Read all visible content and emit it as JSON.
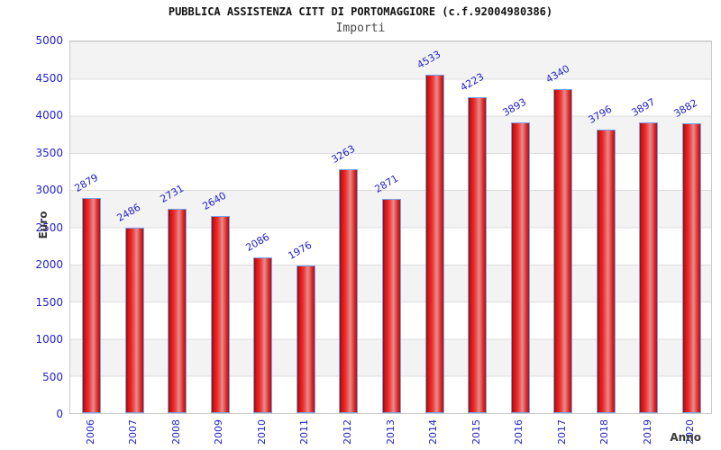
{
  "chart_data": {
    "type": "bar",
    "title": "PUBBLICA ASSISTENZA CITT DI PORTOMAGGIORE (c.f.92004980386)",
    "subtitle": "Importi",
    "xlabel": "Anno",
    "ylabel": "Euro",
    "categories": [
      "2006",
      "2007",
      "2008",
      "2009",
      "2010",
      "2011",
      "2012",
      "2013",
      "2014",
      "2015",
      "2016",
      "2017",
      "2018",
      "2019",
      "2020"
    ],
    "values": [
      2879,
      2486,
      2731,
      2640,
      2086,
      1976,
      3263,
      2871,
      4533,
      4223,
      3893,
      4340,
      3796,
      3897,
      3882
    ],
    "ylim": [
      0,
      5000
    ],
    "ytick_step": 500,
    "yticks": [
      0,
      500,
      1000,
      1500,
      2000,
      2500,
      3000,
      3500,
      4000,
      4500,
      5000
    ],
    "grid": "horizontal gridlines with alternating gray/white bands every 500",
    "legend": "none",
    "colors": {
      "bar_fill": "red cylinder gradient #8f0f0f -> #ee2626 -> #dd9090 highlight -> #ad1212",
      "bar_border": "#76a3ea",
      "tick_label": "#2222cc",
      "value_label": "#2222cc",
      "band_gray": "#f3f3f3",
      "gridline": "#dcdcdc",
      "title": "#111111",
      "axis_title": "#3a3a3a"
    }
  }
}
